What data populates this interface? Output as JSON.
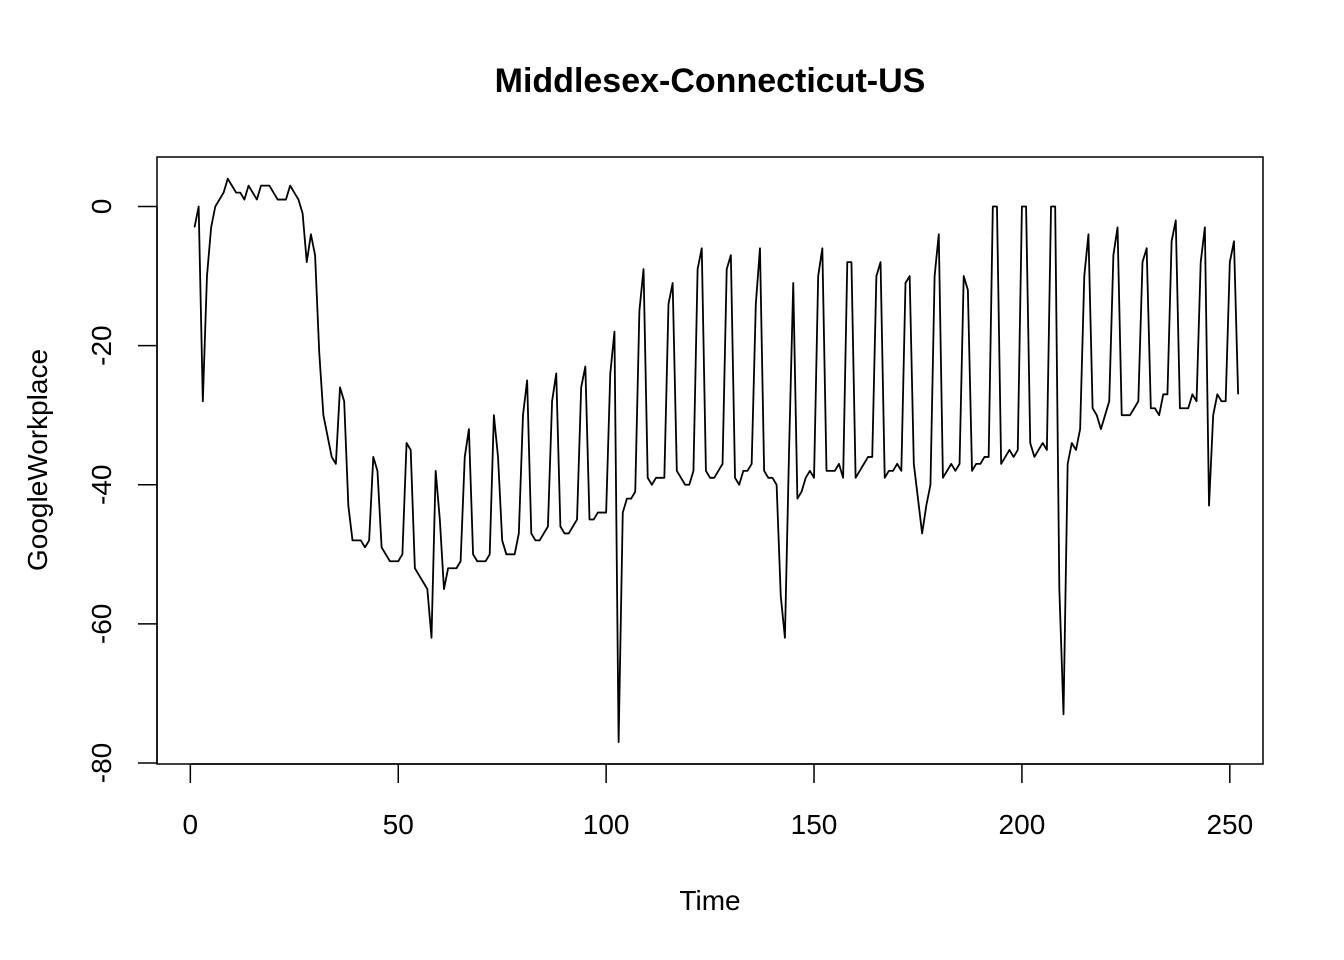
{
  "chart_data": {
    "type": "line",
    "title": "Middlesex-Connecticut-US",
    "xlabel": "Time",
    "ylabel": "GoogleWorkplace",
    "xlim": [
      1,
      248
    ],
    "ylim": [
      -80,
      4
    ],
    "grid": false,
    "x_ticks": [
      0,
      50,
      100,
      150,
      200,
      250
    ],
    "y_ticks": [
      -80,
      -60,
      -40,
      -20,
      0
    ],
    "series": [
      {
        "x_start": 1,
        "values": [
          -3,
          0,
          -28,
          -10,
          -3,
          0,
          1,
          2,
          4,
          3,
          2,
          2,
          1,
          3,
          2,
          1,
          3,
          3,
          3,
          2,
          1,
          1,
          1,
          3,
          2,
          1,
          -1,
          -8,
          -4,
          -7,
          -21,
          -30,
          -33,
          -36,
          -37,
          -26,
          -28,
          -43,
          -48,
          -48,
          -48,
          -49,
          -48,
          -36,
          -38,
          -49,
          -50,
          -51,
          -51,
          -51,
          -50,
          -34,
          -35,
          -52,
          -53,
          -54,
          -55,
          -62,
          -38,
          -45,
          -55,
          -52,
          -52,
          -52,
          -51,
          -36,
          -32,
          -50,
          -51,
          -51,
          -51,
          -50,
          -30,
          -36,
          -48,
          -50,
          -50,
          -50,
          -47,
          -30,
          -25,
          -47,
          -48,
          -48,
          -47,
          -46,
          -28,
          -24,
          -46,
          -47,
          -47,
          -46,
          -45,
          -26,
          -23,
          -45,
          -45,
          -44,
          -44,
          -44,
          -24,
          -18,
          -77,
          -44,
          -42,
          -42,
          -41,
          -15,
          -9,
          -39,
          -40,
          -39,
          -39,
          -39,
          -14,
          -11,
          -38,
          -39,
          -40,
          -40,
          -38,
          -9,
          -6,
          -38,
          -39,
          -39,
          -38,
          -37,
          -9,
          -7,
          -39,
          -40,
          -38,
          -38,
          -37,
          -14,
          -6,
          -38,
          -39,
          -39,
          -40,
          -56,
          -62,
          -35,
          -11,
          -42,
          -41,
          -39,
          -38,
          -39,
          -10,
          -6,
          -38,
          -38,
          -38,
          -37,
          -39,
          -8,
          -8,
          -39,
          -38,
          -37,
          -36,
          -36,
          -10,
          -8,
          -39,
          -38,
          -38,
          -37,
          -38,
          -11,
          -10,
          -37,
          -42,
          -47,
          -43,
          -40,
          -10,
          -4,
          -39,
          -38,
          -37,
          -38,
          -37,
          -10,
          -12,
          -38,
          -37,
          -37,
          -36,
          -36,
          0,
          0,
          -37,
          -36,
          -35,
          -36,
          -35,
          0,
          0,
          -34,
          -36,
          -35,
          -34,
          -35,
          0,
          0,
          -55,
          -73,
          -37,
          -34,
          -35,
          -32,
          -10,
          -4,
          -29,
          -30,
          -32,
          -30,
          -28,
          -7,
          -3,
          -30,
          -30,
          -30,
          -29,
          -28,
          -8,
          -6,
          -29,
          -29,
          -30,
          -27,
          -27,
          -5,
          -2,
          -29,
          -29,
          -29,
          -27,
          -28,
          -8,
          -3,
          -43,
          -30,
          -27,
          -28,
          -28,
          -8,
          -5,
          -27
        ]
      }
    ]
  }
}
